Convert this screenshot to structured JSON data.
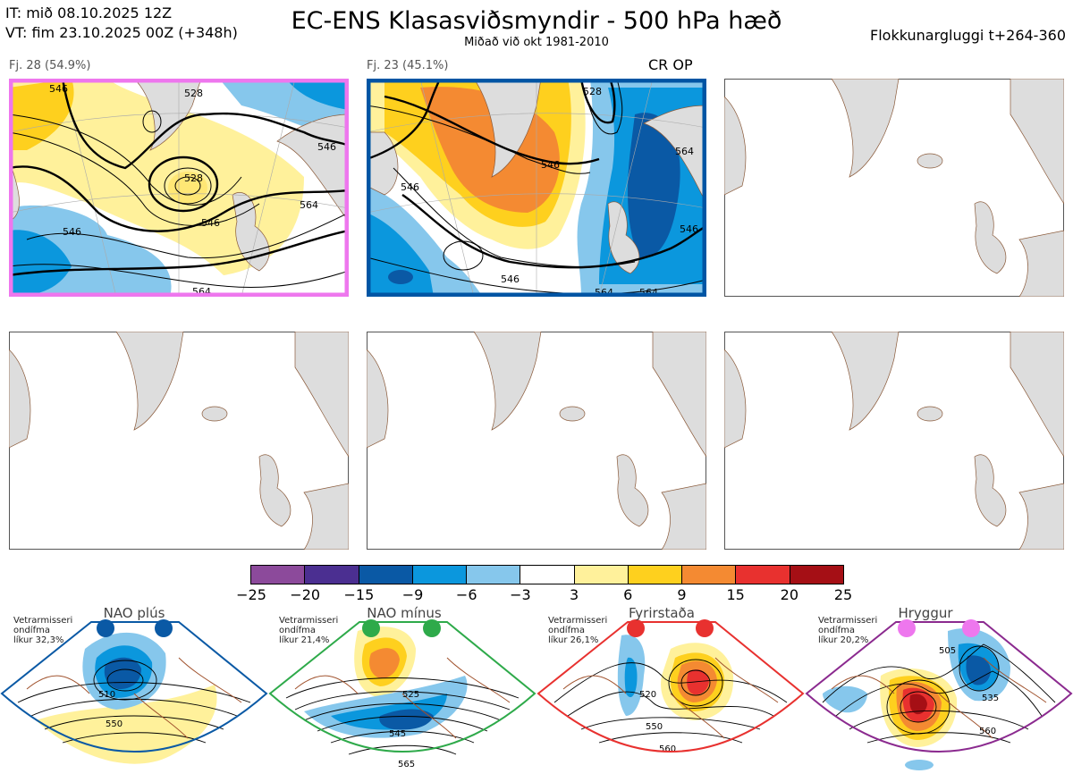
{
  "header": {
    "it_line": "IT: mið 08.10.2025 12Z",
    "vt_line": "VT: fim 23.10.2025 00Z  (+348h)",
    "title": "EC-ENS Klasasviðsmyndir - 500 hPa hæð",
    "subtitle": "Miðað við okt 1981-2010",
    "window": "Flokkunargluggi t+264-360"
  },
  "panels": [
    {
      "label": "Fj. 28 (54.9%)",
      "border_color": "#ee77ee",
      "contour_labels": [
        "528",
        "546",
        "564",
        "528",
        "546",
        "564",
        "546",
        "546"
      ]
    },
    {
      "label": "Fj. 23 (45.1%)",
      "border_color": "#0055a4",
      "tag": "CR OP",
      "contour_labels": [
        "546",
        "528",
        "546",
        "546",
        "564",
        "546",
        "564",
        "564"
      ]
    },
    {
      "label": ""
    },
    {
      "label": ""
    },
    {
      "label": ""
    },
    {
      "label": ""
    }
  ],
  "colorbar": {
    "ticks": [
      "−25",
      "−20",
      "−15",
      "−9",
      "−6",
      "−3",
      "3",
      "6",
      "9",
      "15",
      "20",
      "25"
    ],
    "colors": [
      "#8c4a9b",
      "#4b2f91",
      "#0a59a5",
      "#0b97dd",
      "#86c7ec",
      "#ffffff",
      "#fff19b",
      "#fed01e",
      "#f48a32",
      "#e8312f",
      "#a50f15"
    ]
  },
  "regimes": [
    {
      "title": "NAO plús",
      "note": [
        "Vetrarmisseri",
        "ondífma",
        "líkur 32,3%"
      ],
      "color": "#0a59a5",
      "contour_labels": [
        "510",
        "550"
      ]
    },
    {
      "title": "NAO mínus",
      "note": [
        "Vetrarmisseri",
        "ondífma",
        "líkur 21,4%"
      ],
      "color": "#2eaa4a",
      "contour_labels": [
        "525",
        "545",
        "565"
      ]
    },
    {
      "title": "Fyrirstaða",
      "note": [
        "Vetrarmisseri",
        "ondífma",
        "líkur 26,1%"
      ],
      "color": "#e8312f",
      "contour_labels": [
        "520",
        "550",
        "560"
      ]
    },
    {
      "title": "Hryggur",
      "note": [
        "Vetrarmisseri",
        "ondífma",
        "líkur 20,2%"
      ],
      "color": "#ee77ee",
      "contour_labels": [
        "505",
        "535",
        "560"
      ]
    }
  ]
}
